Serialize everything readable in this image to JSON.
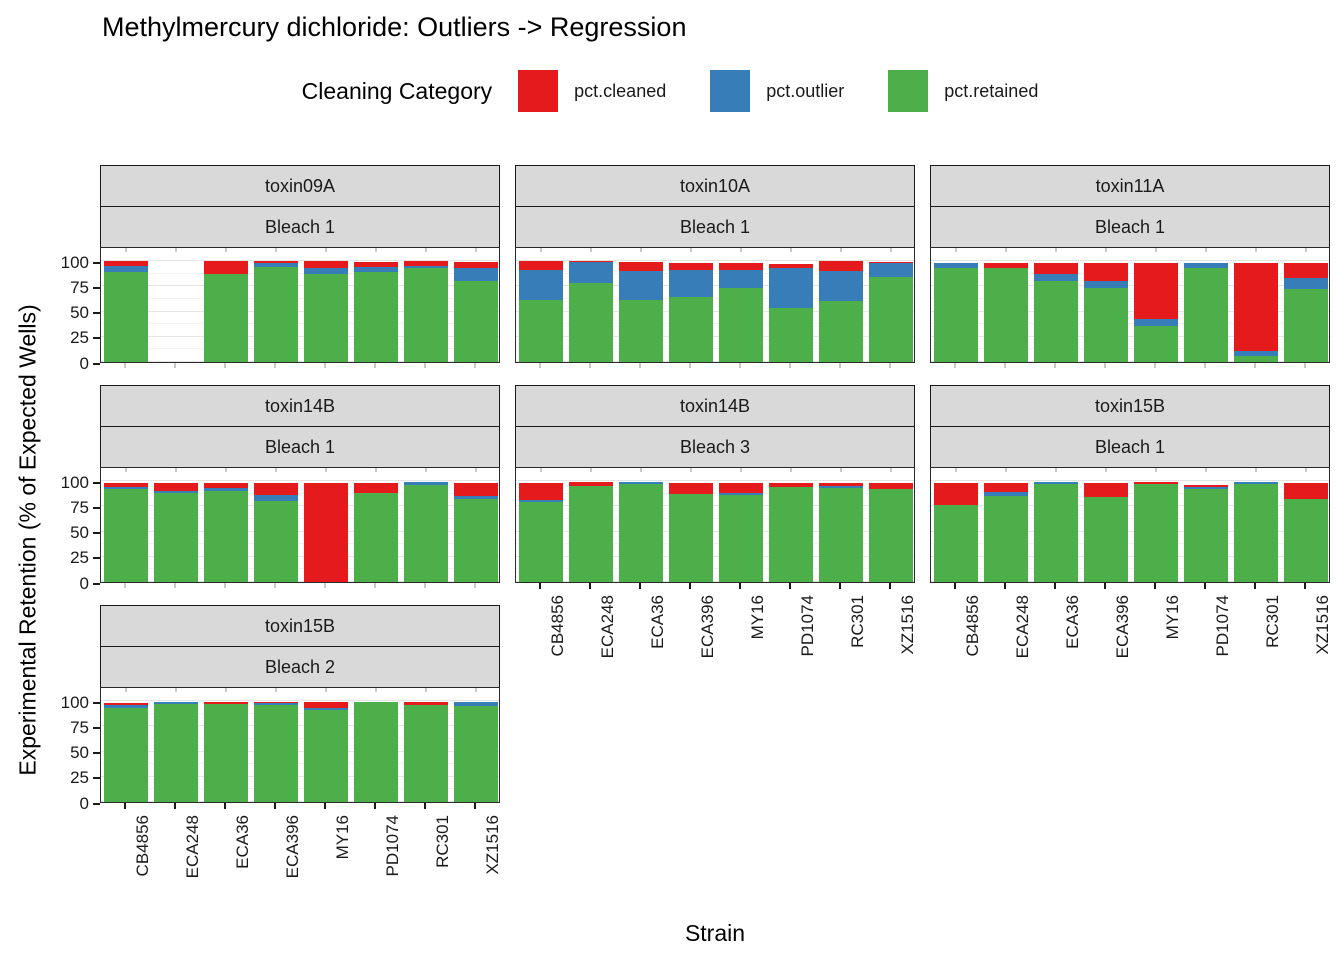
{
  "title": "Methylmercury dichloride: Outliers -> Regression",
  "legend": {
    "title": "Cleaning Category",
    "items": [
      {
        "label": "pct.cleaned",
        "color": "#E41A1C"
      },
      {
        "label": "pct.outlier",
        "color": "#377EB8"
      },
      {
        "label": "pct.retained",
        "color": "#4DAF4A"
      }
    ]
  },
  "axes": {
    "y_title": "Experimental Retention (% of Expected Wells)",
    "x_title": "Strain",
    "y_ticks": [
      100,
      75,
      50,
      25,
      0
    ],
    "ylim": [
      0,
      100
    ]
  },
  "palette": {
    "cleaned": "#E41A1C",
    "outlier": "#377EB8",
    "retained": "#4DAF4A",
    "strip_bg": "#D9D9D9",
    "panel_border": "#2A2A2A",
    "grid_major": "#E4E4E4",
    "grid_minor": "#F2F2F2",
    "minor_tick": "#C9C9C9"
  },
  "chart_data": {
    "type": "bar",
    "stacked": true,
    "stack_order_bottom_to_top": [
      "pct.retained",
      "pct.outlier",
      "pct.cleaned"
    ],
    "categories": [
      "CB4856",
      "ECA248",
      "ECA36",
      "ECA396",
      "MY16",
      "PD1074",
      "RC301",
      "XZ1516"
    ],
    "ylim": [
      0,
      100
    ],
    "grid": "on",
    "legend_position": "top",
    "facets": [
      {
        "toxin": "toxin09A",
        "bleach": "Bleach 1",
        "row": 0,
        "col": 0,
        "x_labels": false,
        "retained": [
          89,
          null,
          87,
          94,
          87,
          89,
          93,
          80
        ],
        "outlier": [
          6,
          null,
          0,
          4,
          6,
          5,
          2,
          13
        ],
        "cleaned": [
          5,
          null,
          13,
          2,
          7,
          5,
          5,
          6
        ]
      },
      {
        "toxin": "toxin10A",
        "bleach": "Bleach 1",
        "row": 0,
        "col": 1,
        "x_labels": false,
        "retained": [
          61,
          78,
          61,
          64,
          73,
          53,
          60,
          84
        ],
        "outlier": [
          30,
          21,
          29,
          27,
          18,
          40,
          30,
          14
        ],
        "cleaned": [
          9,
          1,
          9,
          7,
          7,
          4,
          10,
          1
        ]
      },
      {
        "toxin": "toxin11A",
        "bleach": "Bleach 1",
        "row": 0,
        "col": 2,
        "x_labels": false,
        "retained": [
          93,
          93,
          80,
          73,
          36,
          93,
          6,
          72
        ],
        "outlier": [
          5,
          0,
          7,
          7,
          7,
          5,
          5,
          11
        ],
        "cleaned": [
          0,
          5,
          11,
          18,
          55,
          0,
          87,
          15
        ]
      },
      {
        "toxin": "toxin14B",
        "bleach": "Bleach 1",
        "row": 1,
        "col": 0,
        "x_labels": false,
        "retained": [
          92,
          88,
          90,
          80,
          0,
          88,
          96,
          82
        ],
        "outlier": [
          2,
          2,
          3,
          6,
          0,
          0,
          3,
          3
        ],
        "cleaned": [
          4,
          8,
          5,
          12,
          98,
          10,
          0,
          13
        ]
      },
      {
        "toxin": "toxin14B",
        "bleach": "Bleach 3",
        "row": 1,
        "col": 1,
        "x_labels": true,
        "retained": [
          79,
          95,
          97,
          87,
          86,
          94,
          93,
          92
        ],
        "outlier": [
          2,
          0,
          2,
          0,
          2,
          0,
          2,
          0
        ],
        "cleaned": [
          17,
          4,
          0,
          11,
          10,
          4,
          3,
          6
        ]
      },
      {
        "toxin": "toxin15B",
        "bleach": "Bleach 1",
        "row": 1,
        "col": 2,
        "x_labels": true,
        "retained": [
          76,
          85,
          97,
          84,
          97,
          92,
          97,
          82
        ],
        "outlier": [
          0,
          4,
          2,
          0,
          0,
          2,
          2,
          0
        ],
        "cleaned": [
          22,
          9,
          0,
          14,
          2,
          2,
          0,
          16
        ]
      },
      {
        "toxin": "toxin15B",
        "bleach": "Bleach 2",
        "row": 2,
        "col": 0,
        "x_labels": true,
        "retained": [
          93,
          97,
          97,
          96,
          91,
          99,
          96,
          95
        ],
        "outlier": [
          3,
          2,
          0,
          2,
          2,
          0,
          0,
          4
        ],
        "cleaned": [
          2,
          0,
          2,
          1,
          6,
          0,
          3,
          0
        ]
      }
    ]
  }
}
